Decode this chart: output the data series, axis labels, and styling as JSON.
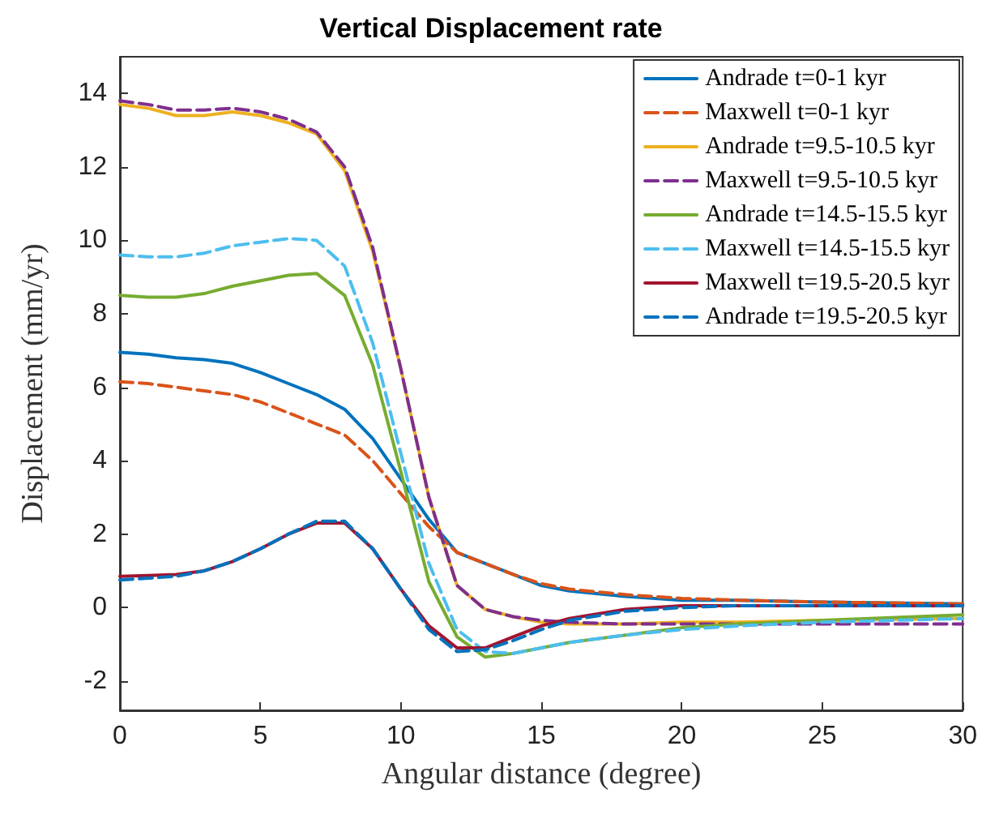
{
  "chart_data": {
    "type": "line",
    "title": "Vertical Displacement rate",
    "xlabel": "Angular distance (degree)",
    "ylabel": "Displacement (mm/yr)",
    "x": [
      0,
      1,
      2,
      3,
      4,
      5,
      6,
      7,
      8,
      9,
      10,
      11,
      12,
      13,
      14,
      15,
      16,
      18,
      20,
      22,
      25,
      30
    ],
    "xlim": [
      0,
      30
    ],
    "xticks": [
      0,
      5,
      10,
      15,
      20,
      25,
      30
    ],
    "ylim": [
      -2.8,
      15
    ],
    "yticks": [
      -2,
      0,
      2,
      4,
      6,
      8,
      10,
      12,
      14
    ],
    "grid": false,
    "legend": "top right",
    "series": [
      {
        "name": "Andrade t=0-1 kyr",
        "color": "#0072bd",
        "line_style": "solid",
        "values": [
          6.95,
          6.9,
          6.8,
          6.75,
          6.65,
          6.4,
          6.1,
          5.8,
          5.4,
          4.6,
          3.5,
          2.4,
          1.5,
          1.2,
          0.9,
          0.6,
          0.45,
          0.3,
          0.2,
          0.2,
          0.15,
          0.1
        ]
      },
      {
        "name": "Maxwell t=0-1 kyr",
        "color": "#d95319",
        "line_style": "dashed",
        "values": [
          6.15,
          6.1,
          6.0,
          5.9,
          5.8,
          5.6,
          5.3,
          5.0,
          4.7,
          4.0,
          3.1,
          2.2,
          1.5,
          1.2,
          0.9,
          0.65,
          0.5,
          0.35,
          0.25,
          0.2,
          0.15,
          0.1
        ]
      },
      {
        "name": "Andrade t=9.5-10.5 kyr",
        "color": "#edb120",
        "line_style": "solid",
        "values": [
          13.7,
          13.6,
          13.4,
          13.4,
          13.5,
          13.4,
          13.2,
          12.9,
          11.9,
          9.7,
          6.5,
          3.0,
          0.6,
          -0.05,
          -0.25,
          -0.4,
          -0.45,
          -0.45,
          -0.4,
          -0.4,
          -0.35,
          -0.3
        ]
      },
      {
        "name": "Maxwell t=9.5-10.5 kyr",
        "color": "#7e2f8e",
        "line_style": "dashed",
        "values": [
          13.8,
          13.7,
          13.55,
          13.55,
          13.6,
          13.5,
          13.3,
          12.95,
          12.0,
          9.8,
          6.5,
          3.0,
          0.6,
          -0.05,
          -0.25,
          -0.35,
          -0.4,
          -0.45,
          -0.45,
          -0.45,
          -0.45,
          -0.45
        ]
      },
      {
        "name": "Andrade t=14.5-15.5 kyr",
        "color": "#77ac30",
        "line_style": "solid",
        "values": [
          8.5,
          8.45,
          8.45,
          8.55,
          8.75,
          8.9,
          9.05,
          9.1,
          8.5,
          6.6,
          3.7,
          0.7,
          -0.8,
          -1.35,
          -1.25,
          -1.1,
          -0.95,
          -0.75,
          -0.55,
          -0.45,
          -0.35,
          -0.2
        ]
      },
      {
        "name": "Maxwell t=14.5-15.5 kyr",
        "color": "#4dbeee",
        "line_style": "dashed",
        "values": [
          9.6,
          9.55,
          9.55,
          9.65,
          9.85,
          9.95,
          10.05,
          10.0,
          9.3,
          7.2,
          4.2,
          1.2,
          -0.6,
          -1.2,
          -1.25,
          -1.1,
          -0.95,
          -0.75,
          -0.6,
          -0.5,
          -0.4,
          -0.3
        ]
      },
      {
        "name": "Maxwell t=19.5-20.5 kyr",
        "color": "#a2142f",
        "line_style": "solid",
        "values": [
          0.85,
          0.87,
          0.9,
          1.0,
          1.25,
          1.6,
          2.0,
          2.3,
          2.3,
          1.6,
          0.5,
          -0.5,
          -1.1,
          -1.1,
          -0.8,
          -0.5,
          -0.3,
          -0.05,
          0.05,
          0.05,
          0.05,
          0.05
        ]
      },
      {
        "name": "Andrade t=19.5-20.5 kyr",
        "color": "#0072bd",
        "line_style": "dashed",
        "values": [
          0.75,
          0.8,
          0.85,
          1.0,
          1.25,
          1.6,
          2.0,
          2.35,
          2.35,
          1.6,
          0.5,
          -0.6,
          -1.2,
          -1.15,
          -0.9,
          -0.6,
          -0.35,
          -0.1,
          0.0,
          0.05,
          0.05,
          0.05
        ]
      }
    ]
  }
}
